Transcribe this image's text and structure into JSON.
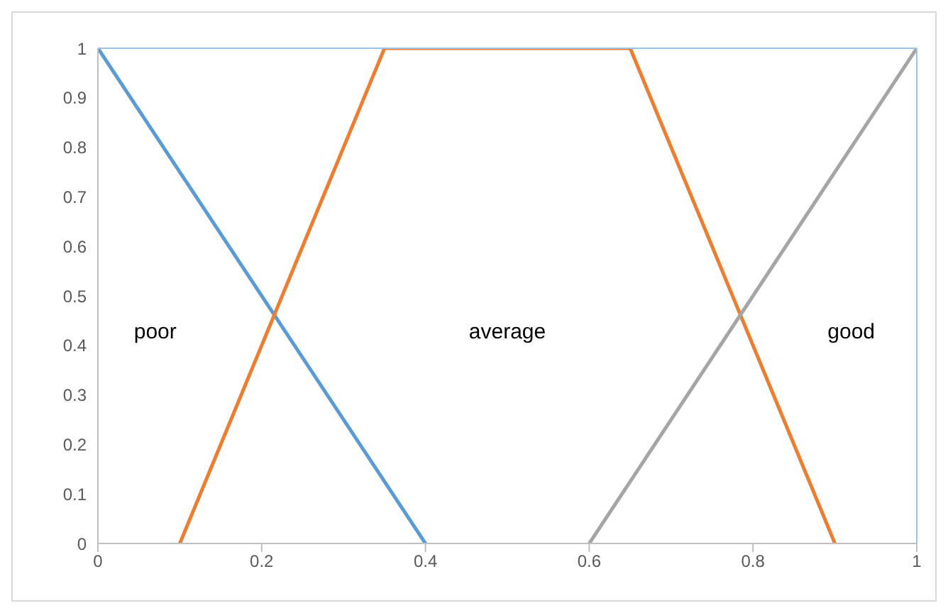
{
  "chart_data": {
    "type": "line",
    "xlim": [
      0,
      1
    ],
    "xticks": [
      0,
      0.2,
      0.4,
      0.6,
      0.8,
      1
    ],
    "ylim": [
      0,
      1
    ],
    "yticks": [
      0,
      0.1,
      0.2,
      0.3,
      0.4,
      0.5,
      0.6,
      0.7,
      0.8,
      0.9,
      1
    ],
    "grid": false,
    "legend": false,
    "marker": "none",
    "line_style": "solid",
    "annotations": [
      "poor",
      "average",
      "good"
    ],
    "series": [
      {
        "color": "#5b9bd5",
        "x": [
          0,
          0.4
        ],
        "values": [
          1,
          0
        ]
      },
      {
        "color": "#ed7d31",
        "x": [
          0.1,
          0.35,
          0.65,
          0.9
        ],
        "values": [
          0,
          1,
          1,
          0
        ]
      },
      {
        "color": "#a5a5a5",
        "x": [
          0.6,
          1
        ],
        "values": [
          0,
          1
        ]
      }
    ]
  }
}
